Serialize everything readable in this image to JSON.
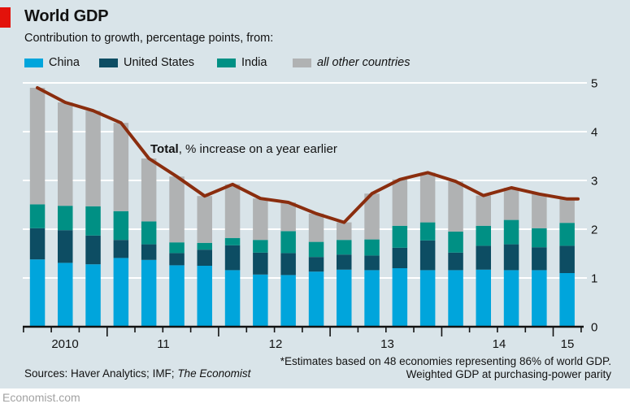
{
  "header": {
    "title": "World GDP",
    "subtitle": "Contribution to growth, percentage points, from:"
  },
  "legend": {
    "items": [
      {
        "label": "China",
        "color": "#00a5dc",
        "italic": false
      },
      {
        "label": "United States",
        "color": "#0d4d63",
        "italic": false
      },
      {
        "label": "India",
        "color": "#009084",
        "italic": false
      },
      {
        "label": "all other countries",
        "color": "#b0b2b3",
        "italic": true
      }
    ]
  },
  "annotation": {
    "bold": "Total",
    "rest": ", % increase on a year earlier"
  },
  "chart_data": {
    "type": "bar",
    "stacked": true,
    "title": "World GDP",
    "ylabel": "",
    "xlabel": "",
    "ylim": [
      0,
      5
    ],
    "y_ticks": [
      0,
      1,
      2,
      3,
      4,
      5
    ],
    "y_axis_side": "right",
    "grid": true,
    "legend_position": "top",
    "x_year_labels": [
      "2010",
      "11",
      "12",
      "13",
      "14",
      "15"
    ],
    "categories": [
      "2010 Q2",
      "2010 Q3",
      "2010 Q4",
      "2011 Q1",
      "2011 Q2",
      "2011 Q3",
      "2011 Q4",
      "2012 Q1",
      "2012 Q2",
      "2012 Q3",
      "2012 Q4",
      "2013 Q1",
      "2013 Q2",
      "2013 Q3",
      "2013 Q4",
      "2014 Q1",
      "2014 Q2",
      "2014 Q3",
      "2014 Q4",
      "2015 Q1"
    ],
    "series": [
      {
        "name": "China",
        "color": "#00a5dc",
        "values": [
          1.38,
          1.31,
          1.28,
          1.41,
          1.37,
          1.26,
          1.25,
          1.16,
          1.07,
          1.06,
          1.13,
          1.17,
          1.16,
          1.2,
          1.16,
          1.16,
          1.17,
          1.16,
          1.16,
          1.1
        ]
      },
      {
        "name": "United States",
        "color": "#0d4d63",
        "values": [
          0.64,
          0.67,
          0.59,
          0.37,
          0.32,
          0.25,
          0.33,
          0.51,
          0.45,
          0.45,
          0.3,
          0.31,
          0.3,
          0.42,
          0.61,
          0.36,
          0.49,
          0.53,
          0.47,
          0.56
        ]
      },
      {
        "name": "India",
        "color": "#009084",
        "values": [
          0.49,
          0.5,
          0.6,
          0.59,
          0.47,
          0.22,
          0.14,
          0.15,
          0.26,
          0.45,
          0.31,
          0.3,
          0.33,
          0.45,
          0.37,
          0.43,
          0.41,
          0.5,
          0.39,
          0.47
        ]
      },
      {
        "name": "all other countries",
        "color": "#b0b2b3",
        "values": [
          2.39,
          2.12,
          1.96,
          1.81,
          1.29,
          1.35,
          0.96,
          1.1,
          0.85,
          0.59,
          0.58,
          0.36,
          0.94,
          0.95,
          1.02,
          1.03,
          0.62,
          0.66,
          0.7,
          0.49
        ]
      }
    ],
    "line_overlay": {
      "name": "Total, % increase on a year earlier",
      "color": "#8a2d0e",
      "values": [
        4.9,
        4.6,
        4.43,
        4.18,
        3.45,
        3.08,
        2.68,
        2.92,
        2.63,
        2.55,
        2.32,
        2.14,
        2.73,
        3.02,
        3.16,
        2.98,
        2.69,
        2.85,
        2.72,
        2.62
      ]
    }
  },
  "colors": {
    "background": "#d9e4e9",
    "red_tab": "#e3120b",
    "gridline": "#ffffff",
    "axis": "#121212",
    "line": "#8a2d0e"
  },
  "footer": {
    "sources_prefix": "Sources: Haver Analytics; IMF; ",
    "sources_italic": "The Economist",
    "note_line1": "*Estimates based on 48 economies representing 86% of world GDP.",
    "note_line2": "Weighted GDP at purchasing-power parity",
    "brand": "Economist.com"
  }
}
